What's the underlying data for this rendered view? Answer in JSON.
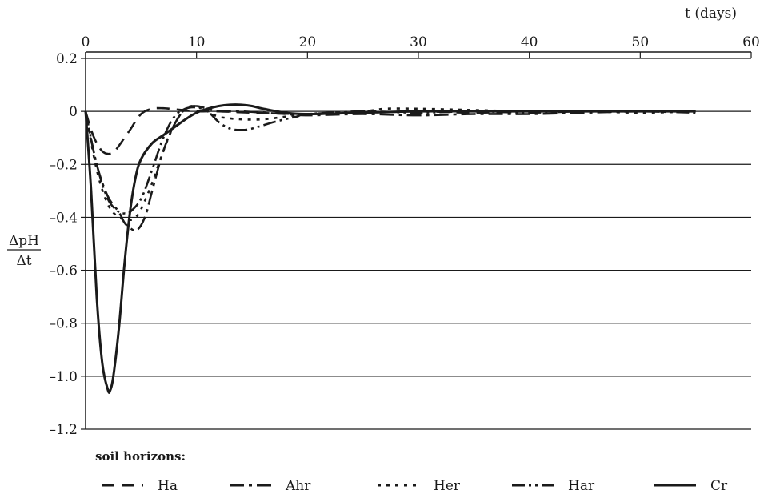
{
  "chart_data": {
    "type": "line",
    "x_axis": {
      "label": "t (days)",
      "ticks": [
        0,
        10,
        20,
        30,
        40,
        50,
        60
      ],
      "range": [
        0,
        60
      ],
      "position": "top"
    },
    "y_axis": {
      "label_numerator": "ΔpH",
      "label_denominator": "Δt",
      "ticks": [
        0.2,
        0,
        -0.2,
        -0.4,
        -0.6,
        -0.8,
        -1.0,
        -1.2
      ],
      "tick_labels": [
        "0.2",
        "0",
        "–0.2",
        "–0.4",
        "–0.6",
        "–0.8",
        "–1.0",
        "–1.2"
      ],
      "range": [
        -1.2,
        0.2
      ]
    },
    "grid": "horizontal",
    "legend": {
      "title": "soil horizons:",
      "placement": "bottom"
    },
    "series": [
      {
        "name": "Ha",
        "dash": "dash",
        "x": [
          0,
          0.5,
          1,
          1.5,
          2,
          2.5,
          3,
          3.5,
          4,
          5,
          6,
          7,
          8,
          9,
          10,
          12,
          15,
          20,
          25,
          30,
          35,
          40,
          45,
          50,
          55
        ],
        "y": [
          0,
          -0.07,
          -0.12,
          -0.15,
          -0.16,
          -0.155,
          -0.13,
          -0.1,
          -0.07,
          -0.01,
          0.01,
          0.012,
          0.008,
          0.004,
          0,
          0,
          -0.005,
          -0.01,
          -0.005,
          0,
          -0.005,
          0,
          0,
          0,
          0
        ]
      },
      {
        "name": "Ahr",
        "dash": "dashdot",
        "x": [
          0,
          1,
          2,
          3,
          3.5,
          4,
          4.5,
          5,
          5.5,
          6,
          7,
          8,
          9,
          10,
          11,
          12,
          14,
          16,
          18,
          20,
          25,
          30,
          35,
          40,
          45,
          50,
          55
        ],
        "y": [
          0,
          -0.2,
          -0.32,
          -0.38,
          -0.42,
          -0.44,
          -0.45,
          -0.43,
          -0.38,
          -0.3,
          -0.15,
          -0.05,
          0.01,
          0.02,
          0.01,
          0,
          0,
          -0.005,
          -0.01,
          -0.015,
          -0.01,
          -0.015,
          -0.01,
          -0.01,
          -0.005,
          0,
          0
        ]
      },
      {
        "name": "Her",
        "dash": "dotted",
        "x": [
          0,
          1,
          2,
          3,
          4,
          4.5,
          5,
          6,
          7,
          8,
          9,
          10,
          11,
          12,
          14,
          16,
          18,
          20,
          25,
          27,
          30,
          35,
          40,
          45,
          50,
          55
        ],
        "y": [
          0,
          -0.22,
          -0.35,
          -0.4,
          -0.41,
          -0.4,
          -0.37,
          -0.27,
          -0.15,
          -0.05,
          0.01,
          0.02,
          0,
          -0.02,
          -0.03,
          -0.03,
          -0.02,
          -0.01,
          0,
          0.01,
          0.01,
          0.005,
          0,
          0,
          -0.005,
          0
        ]
      },
      {
        "name": "Har",
        "dash": "dashdotdot",
        "x": [
          0,
          1,
          2,
          3,
          3.5,
          4,
          5,
          6,
          7,
          8,
          9,
          10,
          11,
          12,
          13,
          14,
          15,
          17,
          19,
          20,
          25,
          30,
          35,
          40,
          45,
          50,
          55
        ],
        "y": [
          0,
          -0.2,
          -0.33,
          -0.38,
          -0.385,
          -0.38,
          -0.33,
          -0.22,
          -0.1,
          -0.02,
          0.01,
          0.015,
          0,
          -0.04,
          -0.065,
          -0.07,
          -0.065,
          -0.04,
          -0.02,
          -0.01,
          0,
          -0.005,
          0,
          -0.005,
          0,
          0,
          -0.005
        ]
      },
      {
        "name": "Cr",
        "dash": "solid",
        "x": [
          0,
          0.5,
          1,
          1.5,
          2,
          2.2,
          2.5,
          3,
          3.5,
          4,
          4.5,
          5,
          6,
          7,
          8,
          9,
          10,
          11,
          12,
          13,
          14,
          15,
          16,
          18,
          20,
          25,
          30,
          35,
          40,
          45,
          50,
          55
        ],
        "y": [
          0,
          -0.3,
          -0.7,
          -0.95,
          -1.05,
          -1.055,
          -1.0,
          -0.82,
          -0.58,
          -0.38,
          -0.25,
          -0.18,
          -0.12,
          -0.09,
          -0.06,
          -0.03,
          -0.005,
          0.01,
          0.02,
          0.025,
          0.025,
          0.02,
          0.01,
          -0.005,
          -0.01,
          -0.005,
          0,
          0,
          0,
          0,
          0,
          0
        ]
      }
    ]
  }
}
